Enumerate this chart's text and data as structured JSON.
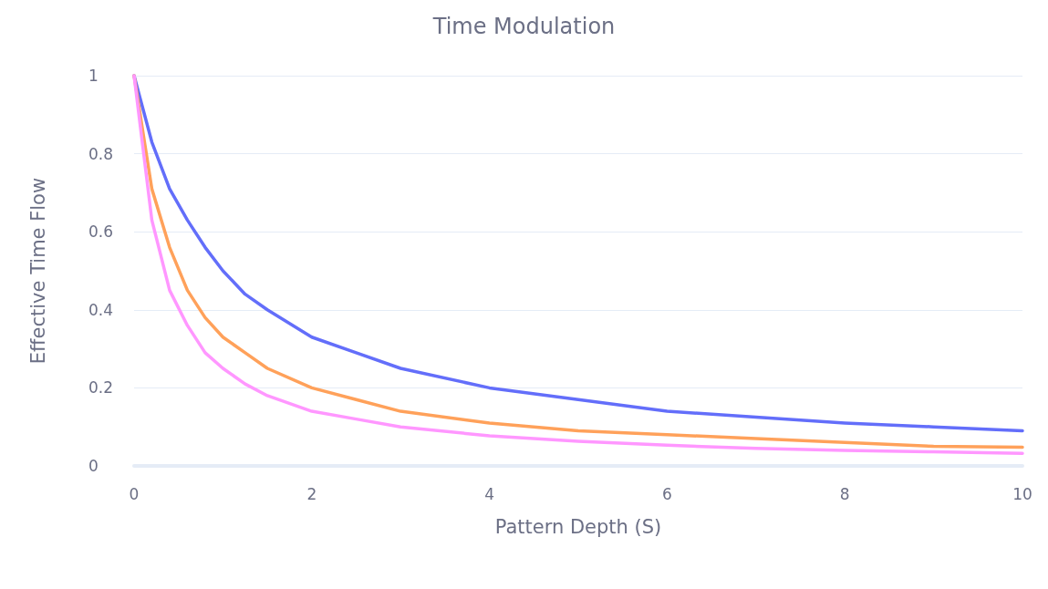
{
  "chart_data": {
    "type": "line",
    "title": "Time Modulation",
    "xlabel": "Pattern Depth (S)",
    "ylabel": "Effective Time Flow",
    "x": [
      0,
      0.2,
      0.4,
      0.6,
      0.8,
      1,
      1.25,
      1.5,
      2,
      2.5,
      3,
      4,
      5,
      6,
      7,
      8,
      9,
      10
    ],
    "series": [
      {
        "color": "#636efa",
        "values": [
          1,
          0.83,
          0.71,
          0.63,
          0.56,
          0.5,
          0.44,
          0.4,
          0.33,
          0.29,
          0.25,
          0.2,
          0.17,
          0.14,
          0.125,
          0.11,
          0.1,
          0.09
        ]
      },
      {
        "color": "#ffa15a",
        "values": [
          1,
          0.71,
          0.56,
          0.45,
          0.38,
          0.33,
          0.29,
          0.25,
          0.2,
          0.17,
          0.14,
          0.11,
          0.09,
          0.08,
          0.07,
          0.06,
          0.05,
          0.048
        ]
      },
      {
        "color": "#ff97ff",
        "values": [
          1,
          0.63,
          0.45,
          0.36,
          0.29,
          0.25,
          0.21,
          0.18,
          0.14,
          0.12,
          0.1,
          0.077,
          0.063,
          0.053,
          0.045,
          0.04,
          0.036,
          0.032
        ]
      }
    ],
    "xlim": [
      0,
      10
    ],
    "xticks": [
      0,
      2,
      4,
      6,
      8,
      10
    ],
    "ylim": [
      0,
      1
    ],
    "yticks": [
      0,
      0.2,
      0.4,
      0.6,
      0.8,
      1
    ],
    "grid": "y",
    "marker": "none",
    "line_style": "solid"
  }
}
